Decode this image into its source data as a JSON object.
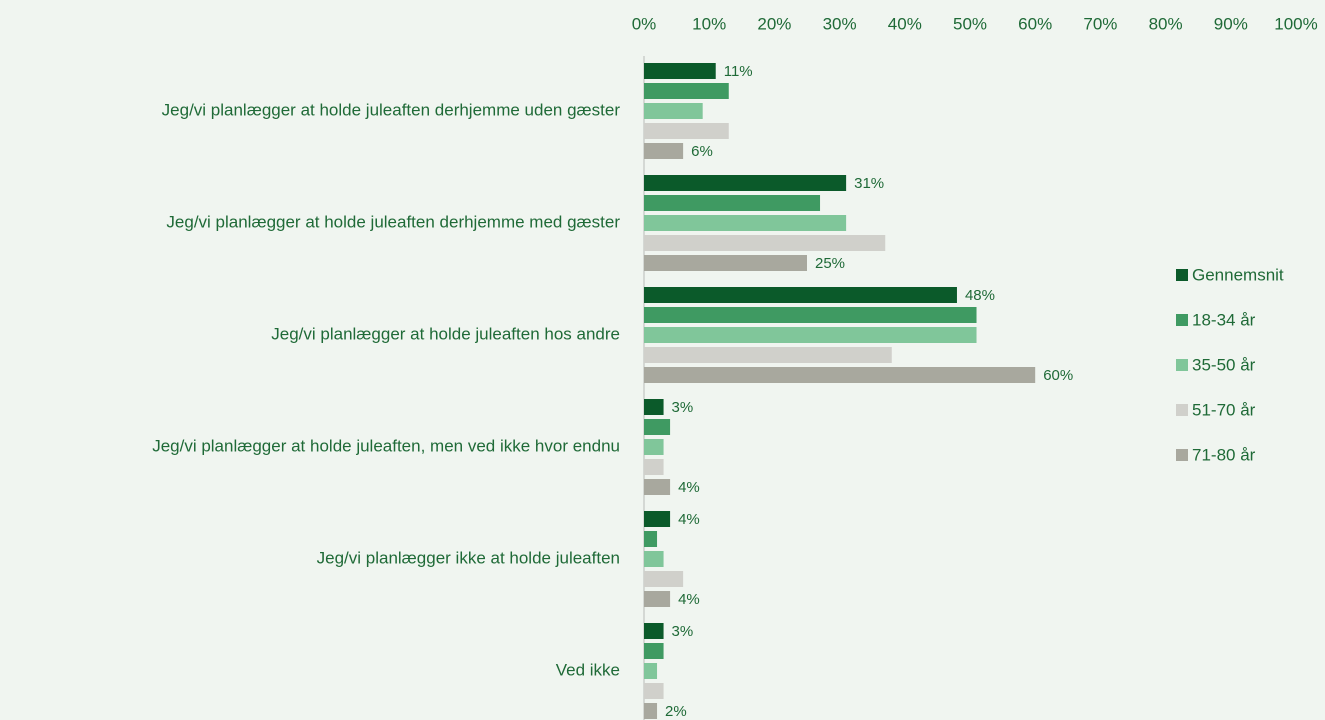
{
  "chart_data": {
    "type": "bar",
    "orientation": "horizontal",
    "legend": "right",
    "categories": [
      "Jeg/vi planlægger at holde juleaften derhjemme uden gæster",
      "Jeg/vi planlægger at holde juleaften derhjemme med gæster",
      "Jeg/vi planlægger at holde juleaften hos andre",
      "Jeg/vi planlægger at holde juleaften, men ved ikke hvor endnu",
      "Jeg/vi planlægger ikke at holde juleaften",
      "Ved ikke"
    ],
    "series": [
      {
        "name": "Gennemsnit",
        "color": "#0b5a2a",
        "values": [
          11,
          31,
          48,
          3,
          4,
          3
        ],
        "value_labels": [
          "11%",
          "31%",
          "48%",
          "3%",
          "4%",
          "3%"
        ]
      },
      {
        "name": "18-34 år",
        "color": "#3f9a62",
        "values": [
          13,
          27,
          51,
          4,
          2,
          3
        ]
      },
      {
        "name": "35-50 år",
        "color": "#80c69a",
        "values": [
          9,
          31,
          51,
          3,
          3,
          2
        ]
      },
      {
        "name": "51-70 år",
        "color": "#d0d0cb",
        "values": [
          13,
          37,
          38,
          3,
          6,
          3
        ]
      },
      {
        "name": "71-80 år",
        "color": "#a8a89e",
        "values": [
          6,
          25,
          60,
          4,
          4,
          2
        ],
        "value_labels": [
          "6%",
          "25%",
          "60%",
          "4%",
          "4%",
          "2%"
        ]
      }
    ],
    "xlim": [
      0,
      100
    ],
    "xticks": [
      {
        "value": 0,
        "label": "0%"
      },
      {
        "value": 10,
        "label": "10%"
      },
      {
        "value": 20,
        "label": "20%"
      },
      {
        "value": 30,
        "label": "30%"
      },
      {
        "value": 40,
        "label": "40%"
      },
      {
        "value": 50,
        "label": "50%"
      },
      {
        "value": 60,
        "label": "60%"
      },
      {
        "value": 70,
        "label": "70%"
      },
      {
        "value": 80,
        "label": "80%"
      },
      {
        "value": 90,
        "label": "90%"
      },
      {
        "value": 100,
        "label": "100%"
      }
    ]
  }
}
